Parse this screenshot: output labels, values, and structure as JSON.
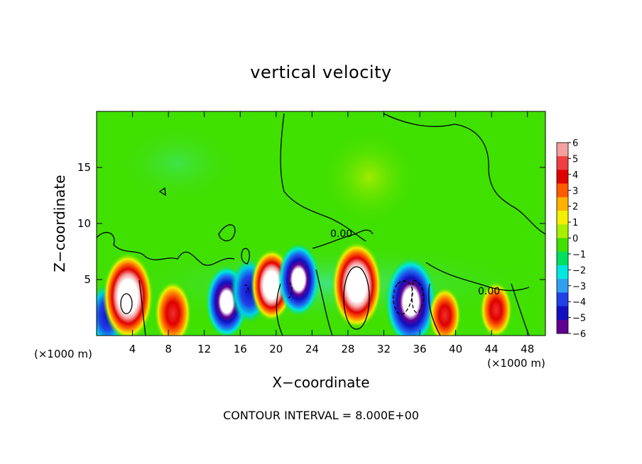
{
  "chart_data": {
    "type": "heatmap",
    "title": "vertical velocity",
    "xlabel": "X−coordinate",
    "ylabel": "Z−coordinate",
    "x_scale_label": "(×1000 m)",
    "x_ticks": [
      4,
      8,
      12,
      16,
      20,
      24,
      28,
      32,
      36,
      40,
      44,
      48
    ],
    "y_ticks": [
      5,
      10,
      15
    ],
    "xlim": [
      0,
      50
    ],
    "ylim": [
      0,
      20
    ],
    "contour_label": "0.00",
    "footer": "CONTOUR INTERVAL = 8.000E+00",
    "colorbar": {
      "labels": [
        "6",
        "5",
        "4",
        "3",
        "2",
        "1",
        "0",
        "−1",
        "−2",
        "−3",
        "−4",
        "−5",
        "−6"
      ],
      "range": [
        -6,
        6
      ],
      "colors": [
        "#f4a0a0",
        "#ee4040",
        "#e00000",
        "#ff5a00",
        "#ffb000",
        "#f2f000",
        "#a8f000",
        "#40e000",
        "#00e060",
        "#00e8e0",
        "#30a0f0",
        "#2040e8",
        "#1010c0",
        "#600090"
      ]
    },
    "features": [
      {
        "x": 1.2,
        "z": 1.8,
        "value": -5
      },
      {
        "x": 3.5,
        "z": 3.5,
        "value": 8
      },
      {
        "x": 8.5,
        "z": 2.0,
        "value": 5
      },
      {
        "x": 14.5,
        "z": 3.0,
        "value": -6
      },
      {
        "x": 17.0,
        "z": 4.0,
        "value": -5
      },
      {
        "x": 19.5,
        "z": 4.5,
        "value": 6
      },
      {
        "x": 22.5,
        "z": 5.0,
        "value": -6
      },
      {
        "x": 29.0,
        "z": 4.5,
        "value": 8
      },
      {
        "x": 35.0,
        "z": 3.0,
        "value": -8
      },
      {
        "x": 38.8,
        "z": 1.8,
        "value": 4
      },
      {
        "x": 44.5,
        "z": 2.3,
        "value": 4
      }
    ]
  }
}
